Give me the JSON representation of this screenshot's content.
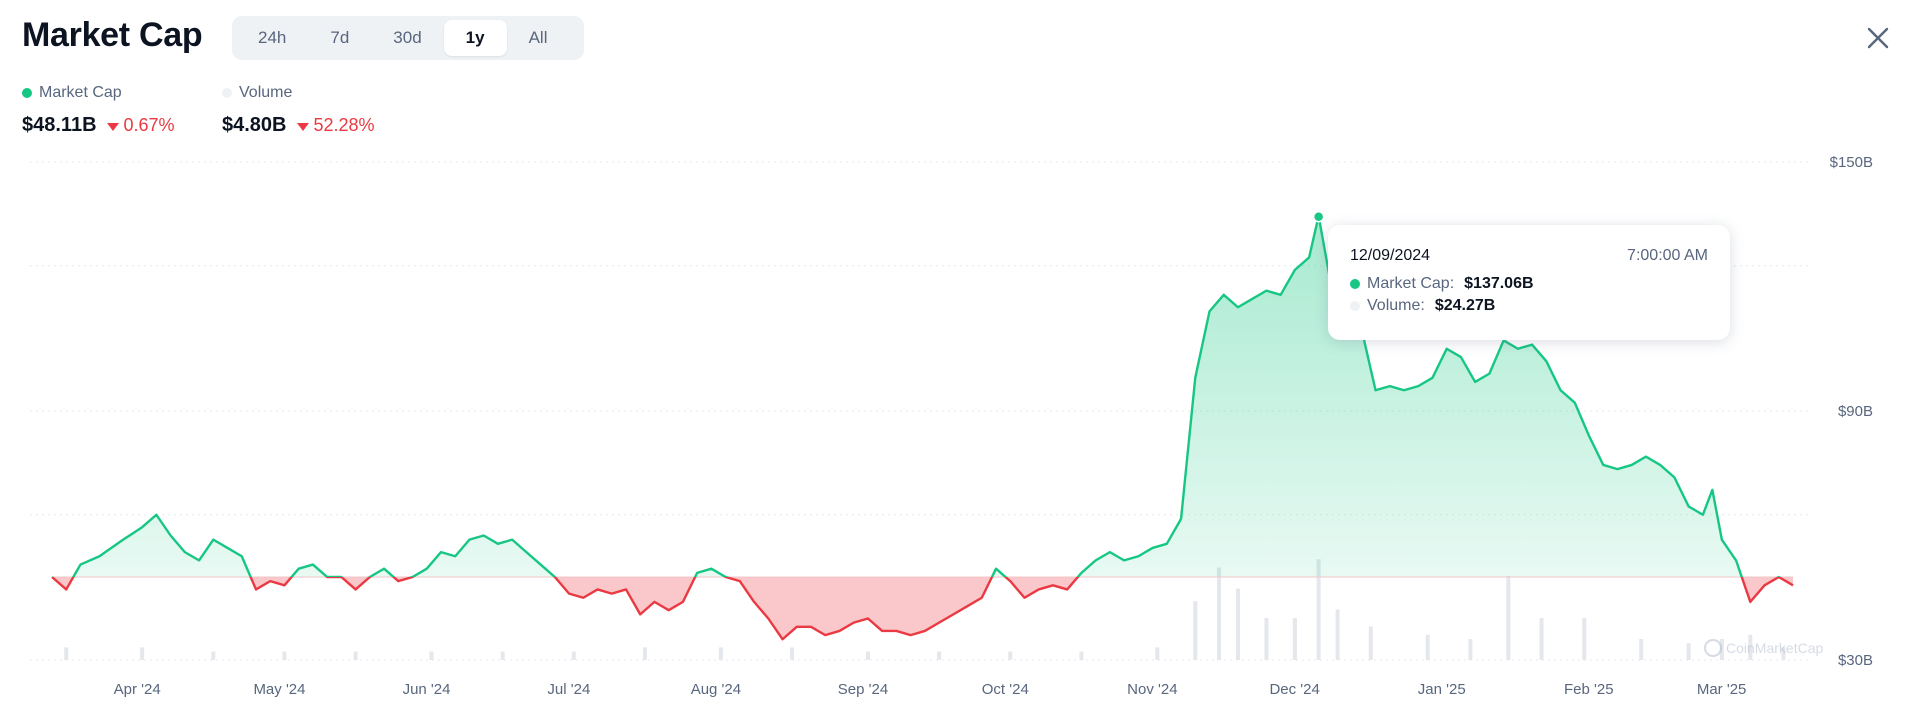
{
  "header": {
    "title": "Market Cap",
    "range_tabs": [
      {
        "label": "24h",
        "active": false
      },
      {
        "label": "7d",
        "active": false
      },
      {
        "label": "30d",
        "active": false
      },
      {
        "label": "1y",
        "active": true
      },
      {
        "label": "All",
        "active": false
      }
    ],
    "close_icon": "close-x-icon"
  },
  "legend": {
    "market_cap": {
      "label": "Market Cap",
      "color": "#16c784",
      "value": "$48.11B",
      "change": "0.67%",
      "direction": "down"
    },
    "volume": {
      "label": "Volume",
      "color": "#eff2f5",
      "value": "$4.80B",
      "change": "52.28%",
      "direction": "down"
    }
  },
  "tooltip": {
    "date": "12/09/2024",
    "time": "7:00:00 AM",
    "market_cap_label": "Market Cap:",
    "market_cap_value": "$137.06B",
    "volume_label": "Volume:",
    "volume_value": "$24.27B"
  },
  "watermark": "CoinMarketCap",
  "colors": {
    "up": "#16c784",
    "down": "#ea3943",
    "baseline_fill_down": "#f8b5b8",
    "volume_bar": "#e4e7ec"
  },
  "chart_data": {
    "type": "line",
    "title": "Market Cap",
    "baseline": 50,
    "ylim": [
      30,
      150
    ],
    "y_ticks": [
      {
        "value": 150,
        "label": "$150B"
      },
      {
        "value": 90,
        "label": "$90B"
      },
      {
        "value": 30,
        "label": "$30B"
      }
    ],
    "x_ticks": [
      {
        "date": "2024-04-01",
        "label": "Apr '24"
      },
      {
        "date": "2024-05-01",
        "label": "May '24"
      },
      {
        "date": "2024-06-01",
        "label": "Jun '24"
      },
      {
        "date": "2024-07-01",
        "label": "Jul '24"
      },
      {
        "date": "2024-08-01",
        "label": "Aug '24"
      },
      {
        "date": "2024-09-01",
        "label": "Sep '24"
      },
      {
        "date": "2024-10-01",
        "label": "Oct '24"
      },
      {
        "date": "2024-11-01",
        "label": "Nov '24"
      },
      {
        "date": "2024-12-01",
        "label": "Dec '24"
      },
      {
        "date": "2025-01-01",
        "label": "Jan '25"
      },
      {
        "date": "2025-02-01",
        "label": "Feb '25"
      },
      {
        "date": "2025-03-01",
        "label": "Mar '25"
      }
    ],
    "series": [
      {
        "name": "Market Cap",
        "unit": "$B",
        "points": [
          [
            "2024-03-17",
            50
          ],
          [
            "2024-03-20",
            47
          ],
          [
            "2024-03-23",
            53
          ],
          [
            "2024-03-27",
            55
          ],
          [
            "2024-04-01",
            59
          ],
          [
            "2024-04-05",
            62
          ],
          [
            "2024-04-08",
            65
          ],
          [
            "2024-04-11",
            60
          ],
          [
            "2024-04-14",
            56
          ],
          [
            "2024-04-17",
            54
          ],
          [
            "2024-04-20",
            59
          ],
          [
            "2024-04-23",
            57
          ],
          [
            "2024-04-26",
            55
          ],
          [
            "2024-04-29",
            47
          ],
          [
            "2024-05-02",
            49
          ],
          [
            "2024-05-05",
            48
          ],
          [
            "2024-05-08",
            52
          ],
          [
            "2024-05-11",
            53
          ],
          [
            "2024-05-14",
            50
          ],
          [
            "2024-05-17",
            50
          ],
          [
            "2024-05-20",
            47
          ],
          [
            "2024-05-23",
            50
          ],
          [
            "2024-05-26",
            52
          ],
          [
            "2024-05-29",
            49
          ],
          [
            "2024-06-01",
            50
          ],
          [
            "2024-06-04",
            52
          ],
          [
            "2024-06-07",
            56
          ],
          [
            "2024-06-10",
            55
          ],
          [
            "2024-06-13",
            59
          ],
          [
            "2024-06-16",
            60
          ],
          [
            "2024-06-19",
            58
          ],
          [
            "2024-06-22",
            59
          ],
          [
            "2024-06-25",
            56
          ],
          [
            "2024-06-28",
            53
          ],
          [
            "2024-07-01",
            50
          ],
          [
            "2024-07-04",
            46
          ],
          [
            "2024-07-07",
            45
          ],
          [
            "2024-07-10",
            47
          ],
          [
            "2024-07-13",
            46
          ],
          [
            "2024-07-16",
            47
          ],
          [
            "2024-07-19",
            41
          ],
          [
            "2024-07-22",
            44
          ],
          [
            "2024-07-25",
            42
          ],
          [
            "2024-07-28",
            44
          ],
          [
            "2024-07-31",
            51
          ],
          [
            "2024-08-03",
            52
          ],
          [
            "2024-08-06",
            50
          ],
          [
            "2024-08-09",
            49
          ],
          [
            "2024-08-12",
            44
          ],
          [
            "2024-08-15",
            40
          ],
          [
            "2024-08-18",
            35
          ],
          [
            "2024-08-21",
            38
          ],
          [
            "2024-08-24",
            38
          ],
          [
            "2024-08-27",
            36
          ],
          [
            "2024-08-30",
            37
          ],
          [
            "2024-09-02",
            39
          ],
          [
            "2024-09-05",
            40
          ],
          [
            "2024-09-08",
            37
          ],
          [
            "2024-09-11",
            37
          ],
          [
            "2024-09-14",
            36
          ],
          [
            "2024-09-17",
            37
          ],
          [
            "2024-09-20",
            39
          ],
          [
            "2024-09-23",
            41
          ],
          [
            "2024-09-26",
            43
          ],
          [
            "2024-09-29",
            45
          ],
          [
            "2024-10-02",
            52
          ],
          [
            "2024-10-05",
            49
          ],
          [
            "2024-10-08",
            45
          ],
          [
            "2024-10-11",
            47
          ],
          [
            "2024-10-14",
            48
          ],
          [
            "2024-10-17",
            47
          ],
          [
            "2024-10-20",
            51
          ],
          [
            "2024-10-23",
            54
          ],
          [
            "2024-10-26",
            56
          ],
          [
            "2024-10-29",
            54
          ],
          [
            "2024-11-01",
            55
          ],
          [
            "2024-11-04",
            57
          ],
          [
            "2024-11-07",
            58
          ],
          [
            "2024-11-10",
            64
          ],
          [
            "2024-11-13",
            98
          ],
          [
            "2024-11-16",
            114
          ],
          [
            "2024-11-19",
            118
          ],
          [
            "2024-11-22",
            115
          ],
          [
            "2024-11-25",
            117
          ],
          [
            "2024-11-28",
            119
          ],
          [
            "2024-12-01",
            118
          ],
          [
            "2024-12-04",
            124
          ],
          [
            "2024-12-07",
            127
          ],
          [
            "2024-12-09",
            137
          ],
          [
            "2024-12-12",
            118
          ],
          [
            "2024-12-15",
            117
          ],
          [
            "2024-12-18",
            110
          ],
          [
            "2024-12-21",
            95
          ],
          [
            "2024-12-24",
            96
          ],
          [
            "2024-12-27",
            95
          ],
          [
            "2024-12-30",
            96
          ],
          [
            "2025-01-02",
            98
          ],
          [
            "2025-01-05",
            105
          ],
          [
            "2025-01-08",
            103
          ],
          [
            "2025-01-11",
            97
          ],
          [
            "2025-01-14",
            99
          ],
          [
            "2025-01-17",
            107
          ],
          [
            "2025-01-20",
            105
          ],
          [
            "2025-01-23",
            106
          ],
          [
            "2025-01-26",
            102
          ],
          [
            "2025-01-29",
            95
          ],
          [
            "2025-02-01",
            92
          ],
          [
            "2025-02-04",
            84
          ],
          [
            "2025-02-07",
            77
          ],
          [
            "2025-02-10",
            76
          ],
          [
            "2025-02-13",
            77
          ],
          [
            "2025-02-16",
            79
          ],
          [
            "2025-02-19",
            77
          ],
          [
            "2025-02-22",
            74
          ],
          [
            "2025-02-25",
            67
          ],
          [
            "2025-02-28",
            65
          ],
          [
            "2025-03-02",
            71
          ],
          [
            "2025-03-04",
            59
          ],
          [
            "2025-03-07",
            54
          ],
          [
            "2025-03-10",
            44
          ],
          [
            "2025-03-13",
            48
          ],
          [
            "2025-03-16",
            50
          ],
          [
            "2025-03-19",
            48
          ]
        ]
      },
      {
        "name": "Volume",
        "unit": "$B",
        "bars": [
          [
            "2024-03-20",
            3
          ],
          [
            "2024-04-05",
            3
          ],
          [
            "2024-04-20",
            2
          ],
          [
            "2024-05-05",
            2
          ],
          [
            "2024-05-20",
            2
          ],
          [
            "2024-06-05",
            2
          ],
          [
            "2024-06-20",
            2
          ],
          [
            "2024-07-05",
            2
          ],
          [
            "2024-07-20",
            3
          ],
          [
            "2024-08-05",
            3
          ],
          [
            "2024-08-20",
            3
          ],
          [
            "2024-09-05",
            2
          ],
          [
            "2024-09-20",
            2
          ],
          [
            "2024-10-05",
            2
          ],
          [
            "2024-10-20",
            2
          ],
          [
            "2024-11-05",
            3
          ],
          [
            "2024-11-13",
            14
          ],
          [
            "2024-11-18",
            22
          ],
          [
            "2024-11-22",
            17
          ],
          [
            "2024-11-28",
            10
          ],
          [
            "2024-12-04",
            10
          ],
          [
            "2024-12-09",
            24
          ],
          [
            "2024-12-13",
            12
          ],
          [
            "2024-12-20",
            8
          ],
          [
            "2025-01-01",
            6
          ],
          [
            "2025-01-10",
            5
          ],
          [
            "2025-01-18",
            20
          ],
          [
            "2025-01-25",
            10
          ],
          [
            "2025-02-03",
            10
          ],
          [
            "2025-02-15",
            5
          ],
          [
            "2025-02-25",
            4
          ],
          [
            "2025-03-04",
            5
          ],
          [
            "2025-03-10",
            6
          ],
          [
            "2025-03-17",
            3
          ]
        ]
      }
    ],
    "highlight": {
      "date": "2024-12-09",
      "value": 137.06
    }
  }
}
